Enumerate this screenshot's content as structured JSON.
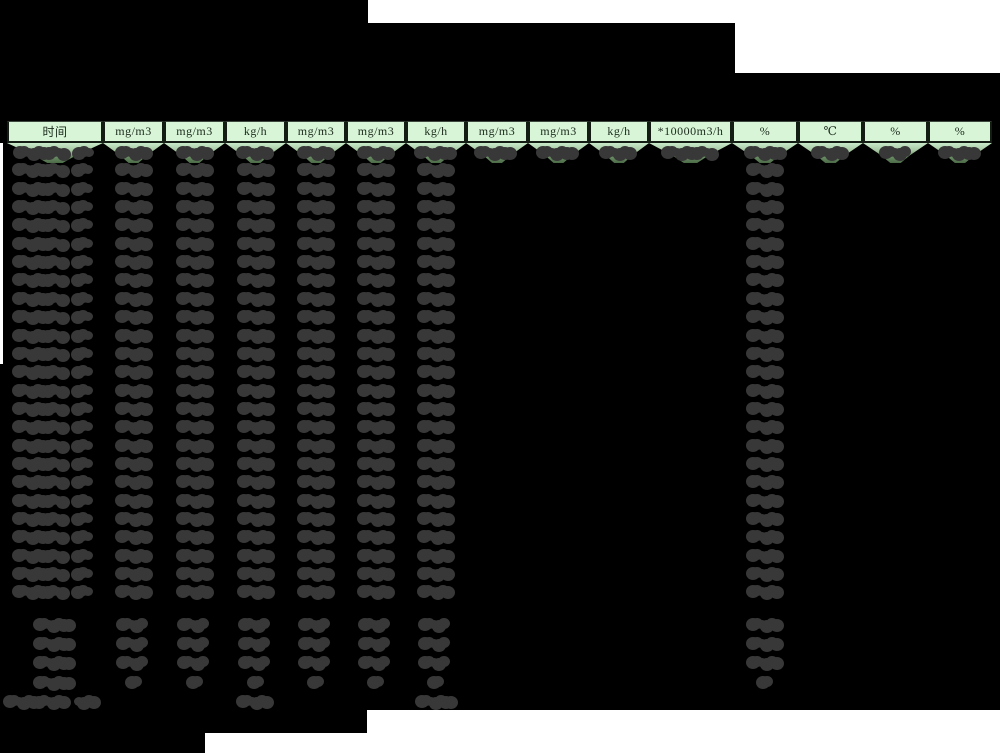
{
  "page": {
    "background_color": "#000000",
    "description_note": "report table with redacted content"
  },
  "table": {
    "columns": [
      "时间",
      "mg/m3",
      "mg/m3",
      "kg/h",
      "mg/m3",
      "mg/m3",
      "kg/h",
      "mg/m3",
      "mg/m3",
      "kg/h",
      "*10000m3/h",
      "%",
      "℃",
      "%",
      "%"
    ],
    "header_bg": "#d8f5d8",
    "header_text_color": "#1b2a1b",
    "row_highlight_top": "#c9eac9",
    "row_highlight_bottom": "#4c6b48",
    "redaction_color": "#383838",
    "main_data_rows": 25,
    "summary_rows": 4,
    "redaction_layout": {
      "columns_with_values_every_row": [
        0,
        1,
        2,
        3,
        4,
        5,
        6,
        11
      ],
      "columns_with_values_first_row_only": [
        7,
        8,
        9,
        10,
        12,
        13,
        14
      ],
      "summary_value_columns": [
        0,
        1,
        2,
        3,
        4,
        5,
        6,
        11
      ],
      "footer_value_columns": [
        3,
        6
      ],
      "footer_has_left_label": true
    }
  }
}
